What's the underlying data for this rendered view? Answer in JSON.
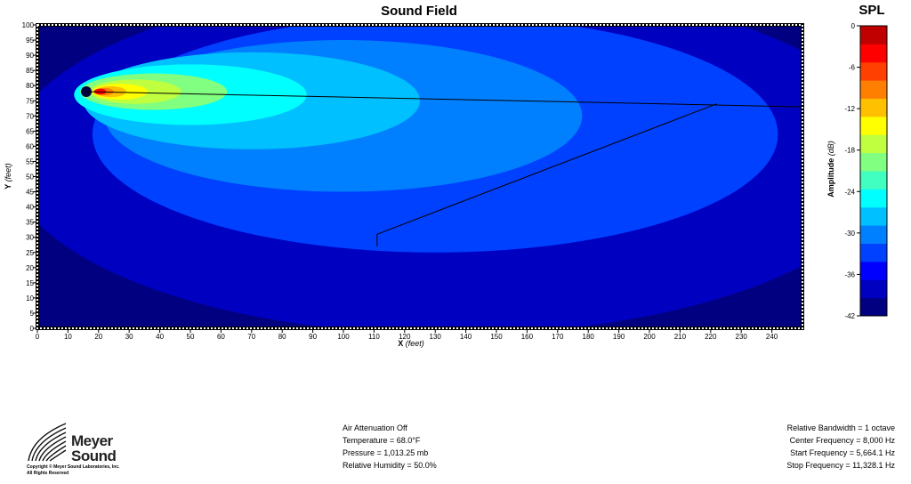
{
  "chart_data": {
    "type": "heatmap",
    "title": "Sound Field",
    "xlabel": "X",
    "xunit": "(feet)",
    "ylabel": "Y",
    "yunit": "(feet)",
    "xlim": [
      0,
      250
    ],
    "ylim": [
      0,
      100
    ],
    "xticks": [
      0,
      10,
      20,
      30,
      40,
      50,
      60,
      70,
      80,
      90,
      100,
      110,
      120,
      130,
      140,
      150,
      160,
      170,
      180,
      190,
      200,
      210,
      220,
      230,
      240
    ],
    "yticks": [
      0,
      5,
      10,
      15,
      20,
      25,
      30,
      35,
      40,
      45,
      50,
      55,
      60,
      65,
      70,
      75,
      80,
      85,
      90,
      95,
      100
    ],
    "source": {
      "x": 16,
      "y": 78
    },
    "contours": [
      {
        "level_db": -39,
        "cx": 135,
        "cy": 56,
        "rx": 145,
        "ry": 58
      },
      {
        "level_db": -33,
        "cx": 130,
        "cy": 64,
        "rx": 112,
        "ry": 39
      },
      {
        "level_db": -30,
        "cx": 100,
        "cy": 70,
        "rx": 78,
        "ry": 25
      },
      {
        "level_db": -27,
        "cx": 70,
        "cy": 75,
        "rx": 55,
        "ry": 16
      },
      {
        "level_db": -24,
        "cx": 50,
        "cy": 77,
        "rx": 38,
        "ry": 10
      },
      {
        "level_db": -21,
        "cx": 38,
        "cy": 78,
        "rx": 24,
        "ry": 6
      },
      {
        "level_db": -18,
        "cx": 32,
        "cy": 78,
        "rx": 15,
        "ry": 4
      },
      {
        "level_db": -15,
        "cx": 27,
        "cy": 78,
        "rx": 9,
        "ry": 2.6
      },
      {
        "level_db": -12,
        "cx": 24,
        "cy": 78,
        "rx": 5,
        "ry": 1.8
      },
      {
        "level_db": -9,
        "cx": 22,
        "cy": 78,
        "rx": 3,
        "ry": 1.2
      },
      {
        "level_db": -3,
        "cx": 20.5,
        "cy": 78,
        "rx": 2,
        "ry": 1
      }
    ],
    "lines": [
      {
        "points": [
          [
            16,
            78
          ],
          [
            250,
            73
          ]
        ]
      },
      {
        "points": [
          [
            222,
            74
          ],
          [
            111,
            31
          ],
          [
            111,
            27
          ]
        ]
      }
    ],
    "colorbar": {
      "title": "SPL",
      "label": "Amplitude",
      "unit": "(dB)",
      "range": [
        -42,
        0
      ],
      "ticks": [
        0,
        -6,
        -12,
        -18,
        -24,
        -30,
        -36,
        -42
      ],
      "colors": [
        "#000080",
        "#0000C0",
        "#0000FF",
        "#0040FF",
        "#0080FF",
        "#00C0FF",
        "#00FFFF",
        "#40FFC0",
        "#80FF80",
        "#C0FF40",
        "#FFFF00",
        "#FFC000",
        "#FF8000",
        "#FF4000",
        "#FF0000",
        "#C00000"
      ]
    },
    "background_db": -42
  },
  "air": {
    "line1": "Air Attenuation Off",
    "line2": "Temperature = 68.0°F",
    "line3": "Pressure = 1,013.25  mb",
    "line4": "Relative Humidity = 50.0%"
  },
  "freq": {
    "line1": "Relative Bandwidth = 1 octave",
    "line2": "Center Frequency = 8,000 Hz",
    "line3": "Start Frequency = 5,664.1 Hz",
    "line4": "Stop Frequency = 11,328.1 Hz"
  },
  "logo": {
    "word1": "Meyer",
    "word2": "Sound",
    "copy1": "Copyright © Meyer Sound Laboratories, Inc.",
    "copy2": "All Rights Reserved"
  }
}
